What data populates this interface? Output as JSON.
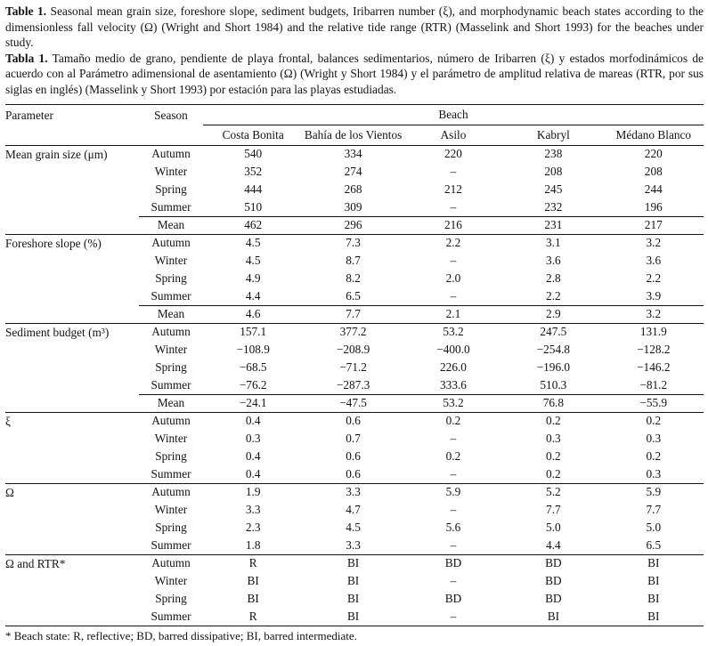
{
  "captions": {
    "english": {
      "label": "Table 1.",
      "text": " Seasonal mean grain size, foreshore slope, sediment budgets, Iribarren number (ξ), and morphodynamic beach states according to the dimensionless fall velocity (Ω) (Wright and Short 1984) and the relative tide range (RTR) (Masselink and Short 1993) for the beaches under study."
    },
    "spanish": {
      "label": "Tabla 1.",
      "text": " Tamaño medio de grano, pendiente de playa frontal, balances sedimentarios, número de Iribarren (ξ) y estados morfodinámicos de acuerdo con al Parámetro adimensional de asentamiento (Ω) (Wright y Short 1984) y el parámetro de amplitud relativa de mareas (RTR, por sus siglas en inglés) (Masselink y Short 1993) por estación para las playas estudiadas."
    }
  },
  "table": {
    "headers": {
      "parameter": "Parameter",
      "season": "Season",
      "beach": "Beach",
      "beaches": [
        "Costa Bonita",
        "Bahía de los Vientos",
        "Asilo",
        "Kabryl",
        "Médano Blanco"
      ]
    },
    "sections": [
      {
        "parameter": "Mean grain size (μm)",
        "rows": [
          {
            "season": "Autumn",
            "values": [
              "540",
              "334",
              "220",
              "238",
              "220"
            ]
          },
          {
            "season": "Winter",
            "values": [
              "352",
              "274",
              "–",
              "208",
              "208"
            ]
          },
          {
            "season": "Spring",
            "values": [
              "444",
              "268",
              "212",
              "245",
              "244"
            ]
          },
          {
            "season": "Summer",
            "values": [
              "510",
              "309",
              "–",
              "232",
              "196"
            ]
          },
          {
            "season": "Mean",
            "values": [
              "462",
              "296",
              "216",
              "231",
              "217"
            ]
          }
        ]
      },
      {
        "parameter": "Foreshore slope (%)",
        "rows": [
          {
            "season": "Autumn",
            "values": [
              "4.5",
              "7.3",
              "2.2",
              "3.1",
              "3.2"
            ]
          },
          {
            "season": "Winter",
            "values": [
              "4.5",
              "8.7",
              "–",
              "3.6",
              "3.6"
            ]
          },
          {
            "season": "Spring",
            "values": [
              "4.9",
              "8.2",
              "2.0",
              "2.8",
              "2.2"
            ]
          },
          {
            "season": "Summer",
            "values": [
              "4.4",
              "6.5",
              "–",
              "2.2",
              "3.9"
            ]
          },
          {
            "season": "Mean",
            "values": [
              "4.6",
              "7.7",
              "2.1",
              "2.9",
              "3.2"
            ]
          }
        ]
      },
      {
        "parameter": "Sediment budget (m³)",
        "rows": [
          {
            "season": "Autumn",
            "values": [
              "157.1",
              "377.2",
              "53.2",
              "247.5",
              "131.9"
            ]
          },
          {
            "season": "Winter",
            "values": [
              "−108.9",
              "−208.9",
              "−400.0",
              "−254.8",
              "−128.2"
            ]
          },
          {
            "season": "Spring",
            "values": [
              "−68.5",
              "−71.2",
              "226.0",
              "−196.0",
              "−146.2"
            ]
          },
          {
            "season": "Summer",
            "values": [
              "−76.2",
              "−287.3",
              "333.6",
              "510.3",
              "−81.2"
            ]
          },
          {
            "season": "Mean",
            "values": [
              "−24.1",
              "−47.5",
              "53.2",
              "76.8",
              "−55.9"
            ]
          }
        ]
      },
      {
        "parameter": "ξ",
        "rows": [
          {
            "season": "Autumn",
            "values": [
              "0.4",
              "0.6",
              "0.2",
              "0.2",
              "0.2"
            ]
          },
          {
            "season": "Winter",
            "values": [
              "0.3",
              "0.7",
              "–",
              "0.3",
              "0.3"
            ]
          },
          {
            "season": "Spring",
            "values": [
              "0.4",
              "0.6",
              "0.2",
              "0.2",
              "0.2"
            ]
          },
          {
            "season": "Summer",
            "values": [
              "0.4",
              "0.6",
              "–",
              "0.2",
              "0.3"
            ]
          }
        ]
      },
      {
        "parameter": "Ω",
        "rows": [
          {
            "season": "Autumn",
            "values": [
              "1.9",
              "3.3",
              "5.9",
              "5.2",
              "5.9"
            ]
          },
          {
            "season": "Winter",
            "values": [
              "3.3",
              "4.7",
              "–",
              "7.7",
              "7.7"
            ]
          },
          {
            "season": "Spring",
            "values": [
              "2.3",
              "4.5",
              "5.6",
              "5.0",
              "5.0"
            ]
          },
          {
            "season": "Summer",
            "values": [
              "1.8",
              "3.3",
              "–",
              "4.4",
              "6.5"
            ]
          }
        ]
      },
      {
        "parameter": "Ω and RTR*",
        "rows": [
          {
            "season": "Autumn",
            "values": [
              "R",
              "BI",
              "BD",
              "BD",
              "BI"
            ]
          },
          {
            "season": "Winter",
            "values": [
              "BI",
              "BI",
              "–",
              "BD",
              "BI"
            ]
          },
          {
            "season": "Spring",
            "values": [
              "BI",
              "BI",
              "BD",
              "BD",
              "BI"
            ]
          },
          {
            "season": "Summer",
            "values": [
              "R",
              "BI",
              "–",
              "BI",
              "BI"
            ]
          }
        ]
      }
    ],
    "footnote": "* Beach state: R, reflective; BD, barred dissipative; BI, barred intermediate."
  }
}
